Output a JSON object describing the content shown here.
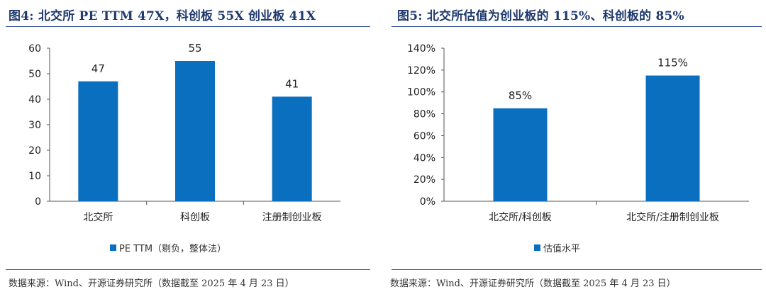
{
  "colors": {
    "bar": "#0b6fc0",
    "title": "#1f3a6e",
    "rule": "#2f4f8f",
    "axis": "#555555"
  },
  "charts": [
    {
      "title": "图4:  北交所 PE TTM 47X，科创板 55X 创业板 41X",
      "source": "数据来源：Wind、开源证券研究所（数据截至 2025 年 4 月 23 日）",
      "legend": "PE TTM（剔负，整体法）"
    },
    {
      "title": "图5:  北交所估值为创业板的 115%、科创板的 85%",
      "source": "数据来源：Wind、开源证券研究所（数据截至 2025 年 4 月 23 日）",
      "legend": "估值水平"
    }
  ],
  "chart_data": [
    {
      "type": "bar",
      "categories": [
        "北交所",
        "科创板",
        "注册制创业板"
      ],
      "series": [
        {
          "name": "PE TTM（剔负，整体法）",
          "values": [
            47,
            55,
            41
          ]
        }
      ],
      "data_labels": [
        "47",
        "55",
        "41"
      ],
      "yticks": [
        "0",
        "10",
        "20",
        "30",
        "40",
        "50",
        "60"
      ],
      "ylim": [
        0,
        60
      ],
      "legend_position": "bottom",
      "grid": false
    },
    {
      "type": "bar",
      "categories": [
        "北交所/科创板",
        "北交所/注册制创业板"
      ],
      "series": [
        {
          "name": "估值水平",
          "values": [
            85,
            115
          ]
        }
      ],
      "data_labels": [
        "85%",
        "115%"
      ],
      "yticks": [
        "0%",
        "20%",
        "40%",
        "60%",
        "80%",
        "100%",
        "120%",
        "140%"
      ],
      "ylim": [
        0,
        140
      ],
      "legend_position": "bottom",
      "grid": false
    }
  ]
}
